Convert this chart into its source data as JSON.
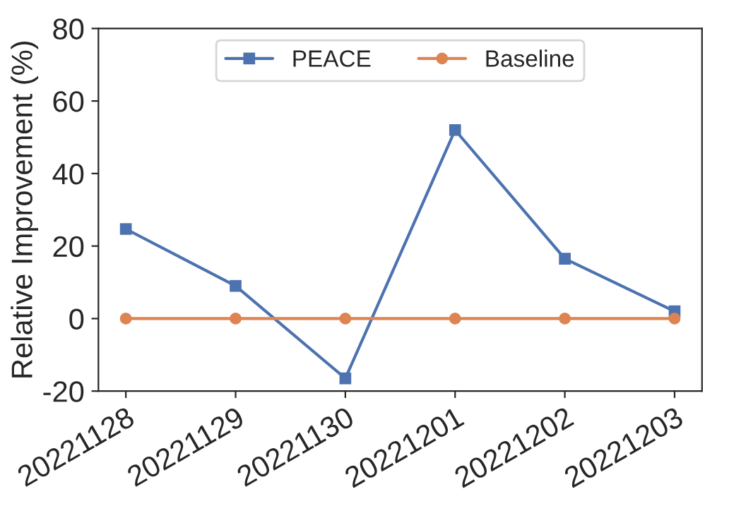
{
  "chart_data": {
    "type": "line",
    "ylabel": "Relative Improvement (%)",
    "categories": [
      "20221128",
      "20221129",
      "20221130",
      "20221201",
      "20221202",
      "20221203"
    ],
    "series": [
      {
        "name": "PEACE",
        "color": "#4c72b0",
        "marker": "square",
        "values": [
          24.7,
          9,
          -16.5,
          52,
          16.5,
          2
        ]
      },
      {
        "name": "Baseline",
        "color": "#dd8452",
        "marker": "circle",
        "values": [
          0,
          0,
          0,
          0,
          0,
          0
        ]
      }
    ],
    "ylim": [
      -20,
      80
    ],
    "yticks": [
      -20,
      0,
      20,
      40,
      60,
      80
    ],
    "legend": "top",
    "grid": false,
    "line_style": "solid"
  }
}
